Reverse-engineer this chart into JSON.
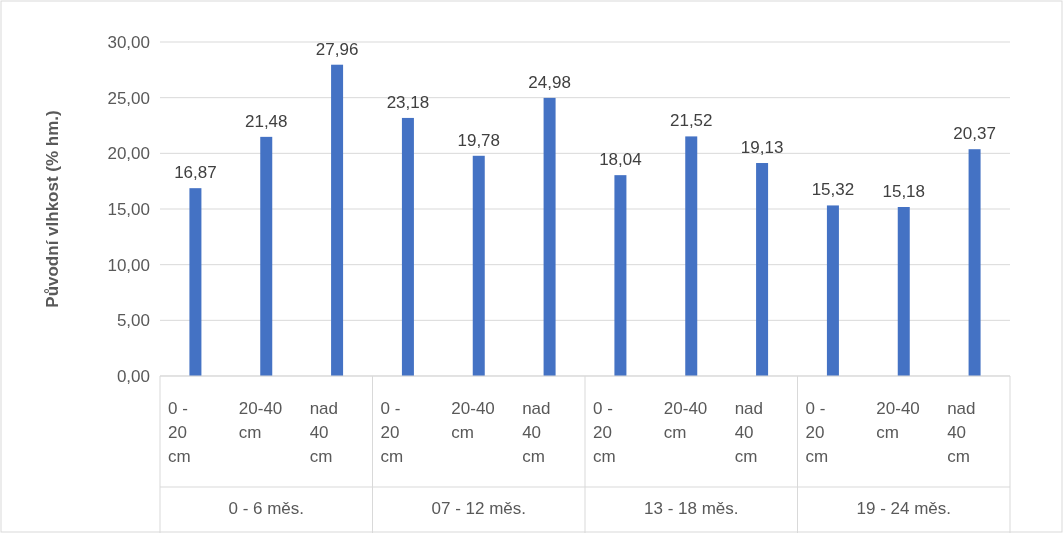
{
  "chart_data": {
    "type": "bar",
    "ylabel": "Původní vlhkost (% hm.)",
    "categories": [
      "0 - 20 cm",
      "20-40 cm",
      "nad 40 cm",
      "0 - 20 cm",
      "20-40 cm",
      "nad 40 cm",
      "0 - 20 cm",
      "20-40 cm",
      "nad 40 cm",
      "0 - 20 cm",
      "20-40 cm",
      "nad 40 cm"
    ],
    "values": [
      16.87,
      21.48,
      27.96,
      23.18,
      19.78,
      24.98,
      18.04,
      21.52,
      19.13,
      15.32,
      15.18,
      20.37
    ],
    "value_labels": [
      "16,87",
      "21,48",
      "27,96",
      "23,18",
      "19,78",
      "24,98",
      "18,04",
      "21,52",
      "19,13",
      "15,32",
      "15,18",
      "20,37"
    ],
    "color": "#4472c4",
    "ylim": [
      0,
      30
    ],
    "yticks": [
      {
        "value": 0,
        "label": "0,00"
      },
      {
        "value": 5,
        "label": "5,00"
      },
      {
        "value": 10,
        "label": "10,00"
      },
      {
        "value": 15,
        "label": "15,00"
      },
      {
        "value": 20,
        "label": "20,00"
      },
      {
        "value": 25,
        "label": "25,00"
      },
      {
        "value": 30,
        "label": "30,00"
      }
    ],
    "grid": "y",
    "annotations": [
      "0 - 6 měs.",
      "07 - 12 měs.",
      "13 - 18 měs.",
      "19 - 24 měs."
    ]
  }
}
